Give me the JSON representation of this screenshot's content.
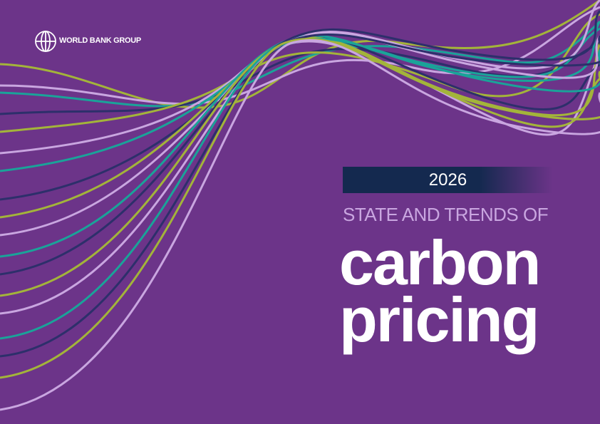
{
  "logo": {
    "text": "WORLD BANK GROUP"
  },
  "cover": {
    "year": "2026",
    "subtitle": "STATE AND TRENDS OF",
    "title_lines": [
      "carbon",
      "pricing"
    ]
  }
}
